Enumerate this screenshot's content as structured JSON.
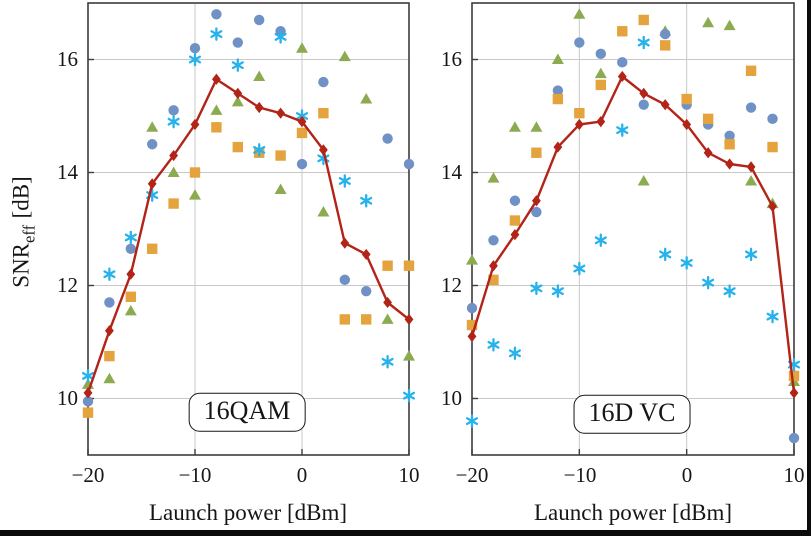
{
  "figure": {
    "ylabel": {
      "main": "SNR",
      "sub": "eff",
      "unit": "[dB]"
    },
    "xlabel": "Launch power [dBm]"
  },
  "colors": {
    "circle_blue": "#6f91c5",
    "asterisk_cyan": "#27b2ec",
    "triangle_green": "#8cab50",
    "square_orange": "#e4a33d",
    "line_red": "#b22318",
    "grid": "#c8c8c8",
    "axis": "#3c3c3c"
  },
  "chart_data": [
    {
      "type": "scatter+line",
      "title": "16QAM",
      "xlabel": "Launch power [dBm]",
      "ylabel": "SNR_eff [dB]",
      "xlim": [
        -20,
        10
      ],
      "ylim": [
        9,
        17
      ],
      "xticks": [
        -20,
        -10,
        0,
        10
      ],
      "yticks": [
        16,
        14,
        12,
        10
      ],
      "xtick_labels": [
        "−20",
        "−10",
        "0",
        "10"
      ],
      "ytick_labels": [
        "16",
        "14",
        "12",
        "10"
      ],
      "grid": true,
      "legend": "none",
      "x": [
        -20,
        -18,
        -16,
        -14,
        -12,
        -10,
        -8,
        -6,
        -4,
        -2,
        0,
        2,
        4,
        6,
        8,
        10
      ],
      "series": [
        {
          "name": "green-triangles",
          "marker": "triangle",
          "color": "#8cab50",
          "line": false,
          "values": [
            10.25,
            10.35,
            11.55,
            14.8,
            14.0,
            13.6,
            15.1,
            15.25,
            15.7,
            13.7,
            16.2,
            13.3,
            16.05,
            15.3,
            11.4,
            10.75
          ]
        },
        {
          "name": "blue-circles",
          "marker": "circle",
          "color": "#6f91c5",
          "line": false,
          "values": [
            9.95,
            11.7,
            12.65,
            14.5,
            15.1,
            16.2,
            16.8,
            16.3,
            16.7,
            16.5,
            14.15,
            15.6,
            12.1,
            11.9,
            14.6,
            14.15
          ]
        },
        {
          "name": "orange-squares",
          "marker": "square",
          "color": "#e4a33d",
          "line": false,
          "values": [
            9.75,
            10.75,
            11.8,
            12.65,
            13.45,
            14.0,
            14.8,
            14.45,
            14.35,
            14.3,
            14.7,
            15.05,
            11.4,
            11.4,
            12.35,
            12.35
          ]
        },
        {
          "name": "cyan-asterisks",
          "marker": "asterisk",
          "color": "#27b2ec",
          "line": false,
          "values": [
            10.4,
            12.2,
            12.85,
            13.6,
            14.9,
            16.0,
            16.45,
            15.9,
            14.4,
            16.4,
            15.0,
            14.25,
            13.85,
            13.5,
            10.65,
            10.05
          ]
        },
        {
          "name": "red-diamond-line",
          "marker": "diamond",
          "color": "#b22318",
          "line": true,
          "values": [
            10.1,
            11.2,
            12.2,
            13.8,
            14.3,
            14.85,
            15.65,
            15.4,
            15.15,
            15.05,
            14.9,
            14.4,
            12.75,
            12.55,
            11.7,
            11.4
          ]
        }
      ]
    },
    {
      "type": "scatter+line",
      "title": "16D VC",
      "xlabel": "Launch power [dBm]",
      "ylabel": "SNR_eff [dB]",
      "xlim": [
        -20,
        10
      ],
      "ylim": [
        9,
        17
      ],
      "xticks": [
        -20,
        -10,
        0,
        10
      ],
      "yticks": [
        16,
        14,
        12,
        10
      ],
      "xtick_labels": [
        "−20",
        "−10",
        "0",
        "10"
      ],
      "ytick_labels": [
        "16",
        "14",
        "12",
        "10"
      ],
      "grid": true,
      "legend": "none",
      "x": [
        -20,
        -18,
        -16,
        -14,
        -12,
        -10,
        -8,
        -6,
        -4,
        -2,
        0,
        2,
        4,
        6,
        8,
        10
      ],
      "series": [
        {
          "name": "green-triangles",
          "marker": "triangle",
          "color": "#8cab50",
          "line": false,
          "values": [
            12.45,
            13.9,
            14.8,
            14.8,
            16.0,
            16.8,
            15.75,
            null,
            13.85,
            16.5,
            null,
            16.65,
            16.6,
            13.85,
            13.45,
            10.3
          ]
        },
        {
          "name": "blue-circles",
          "marker": "circle",
          "color": "#6f91c5",
          "line": false,
          "values": [
            11.6,
            12.8,
            13.5,
            13.3,
            15.45,
            16.3,
            16.1,
            15.95,
            15.2,
            16.45,
            15.2,
            14.85,
            14.65,
            15.15,
            14.95,
            9.3
          ]
        },
        {
          "name": "orange-squares",
          "marker": "square",
          "color": "#e4a33d",
          "line": false,
          "values": [
            11.3,
            12.1,
            13.15,
            14.35,
            15.3,
            15.05,
            15.55,
            16.5,
            16.7,
            16.25,
            15.3,
            14.95,
            14.5,
            15.8,
            14.45,
            10.4
          ]
        },
        {
          "name": "cyan-asterisks",
          "marker": "asterisk",
          "color": "#27b2ec",
          "line": false,
          "values": [
            9.6,
            10.95,
            10.8,
            11.95,
            11.9,
            12.3,
            12.8,
            14.75,
            16.3,
            12.55,
            12.4,
            12.05,
            11.9,
            12.55,
            11.45,
            10.6
          ]
        },
        {
          "name": "red-diamond-line",
          "marker": "diamond",
          "color": "#b22318",
          "line": true,
          "values": [
            11.1,
            12.35,
            12.9,
            13.5,
            14.45,
            14.85,
            14.9,
            15.7,
            15.4,
            15.2,
            14.85,
            14.35,
            14.15,
            14.1,
            13.4,
            10.1
          ]
        }
      ]
    }
  ]
}
